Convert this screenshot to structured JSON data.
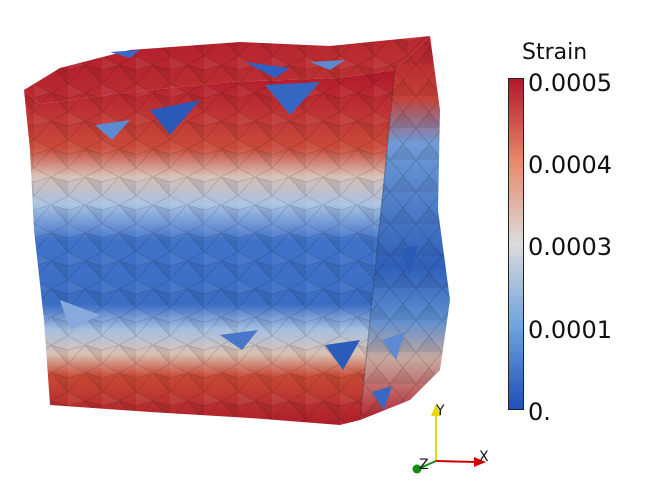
{
  "legend": {
    "title": "Strain",
    "ticks": [
      "0.0005",
      "0.0004",
      "0.0003",
      "0.0001",
      "0."
    ],
    "colors": {
      "max": "#b2182b",
      "upper": "#e8896b",
      "mid": "#dcdcdc",
      "lower": "#6da3de",
      "min": "#1f4fb8"
    }
  },
  "axes_triad": {
    "y_label": "Y",
    "x_label": "X",
    "z_label": "Z",
    "colors": {
      "y": "#e6d800",
      "x": "#d40000",
      "z": "#109010"
    }
  },
  "scene": {
    "object": "fractured-cube-mesh"
  }
}
